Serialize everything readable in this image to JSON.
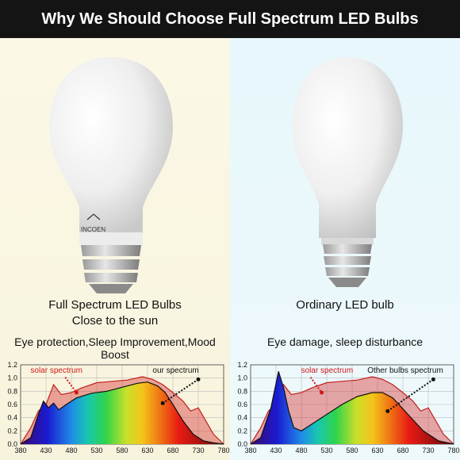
{
  "banner": {
    "title": "Why We Should Choose Full Spectrum LED Bulbs"
  },
  "left": {
    "logo_text": "INCOEN",
    "caption_line1": "Full Spectrum LED Bulbs",
    "caption_line2": "Close to the sun",
    "benefit": "Eye protection,Sleep Improvement,Mood Boost"
  },
  "right": {
    "caption": "Ordinary LED bulb",
    "benefit": "Eye damage, sleep disturbance"
  },
  "chart_data": [
    {
      "type": "area",
      "x": [
        380,
        430,
        480,
        530,
        580,
        630,
        680,
        730,
        780
      ],
      "ylim": [
        0,
        1.2
      ],
      "yticks": [
        "1.2",
        "1.0",
        "0.8",
        "0.6",
        "0.4",
        "0.2",
        "0.0"
      ],
      "xticks": [
        "380",
        "430",
        "480",
        "530",
        "580",
        "630",
        "680",
        "730",
        "780"
      ],
      "annotations": [
        "solar spectrum",
        "our spectrum"
      ],
      "series": [
        {
          "name": "solar spectrum",
          "x": [
            380,
            400,
            415,
            430,
            445,
            460,
            480,
            500,
            530,
            560,
            590,
            620,
            640,
            660,
            680,
            700,
            715,
            730,
            745,
            760,
            780
          ],
          "y": [
            0.0,
            0.25,
            0.5,
            0.6,
            0.9,
            0.75,
            0.78,
            0.85,
            0.93,
            0.95,
            0.97,
            1.02,
            0.98,
            0.9,
            0.78,
            0.65,
            0.5,
            0.55,
            0.35,
            0.15,
            0.0
          ]
        },
        {
          "name": "our spectrum",
          "x": [
            380,
            400,
            415,
            425,
            435,
            445,
            455,
            470,
            490,
            520,
            550,
            580,
            610,
            630,
            650,
            665,
            680,
            700,
            720,
            740,
            760,
            780
          ],
          "y": [
            0.0,
            0.1,
            0.45,
            0.65,
            0.55,
            0.62,
            0.52,
            0.6,
            0.7,
            0.77,
            0.8,
            0.86,
            0.92,
            0.94,
            0.88,
            0.78,
            0.6,
            0.35,
            0.15,
            0.05,
            0.02,
            0.0
          ]
        }
      ]
    },
    {
      "type": "area",
      "x": [
        380,
        430,
        480,
        530,
        580,
        630,
        680,
        730,
        780
      ],
      "ylim": [
        0,
        1.2
      ],
      "yticks": [
        "1.2",
        "1.0",
        "0.8",
        "0.6",
        "0.4",
        "0.2",
        "0.0"
      ],
      "xticks": [
        "380",
        "430",
        "480",
        "530",
        "580",
        "630",
        "680",
        "730",
        "780"
      ],
      "annotations": [
        "solar spectrum",
        "Other bulbs spectrum"
      ],
      "series": [
        {
          "name": "solar spectrum",
          "x": [
            380,
            400,
            415,
            430,
            445,
            460,
            480,
            500,
            530,
            560,
            590,
            620,
            640,
            660,
            680,
            700,
            715,
            730,
            745,
            760,
            780
          ],
          "y": [
            0.0,
            0.25,
            0.5,
            0.6,
            0.9,
            0.75,
            0.78,
            0.85,
            0.93,
            0.95,
            0.97,
            1.02,
            0.98,
            0.9,
            0.78,
            0.65,
            0.5,
            0.55,
            0.35,
            0.15,
            0.0
          ]
        },
        {
          "name": "Other bulbs spectrum",
          "x": [
            380,
            400,
            420,
            435,
            445,
            455,
            465,
            480,
            500,
            530,
            560,
            590,
            620,
            640,
            660,
            690,
            720,
            750,
            780
          ],
          "y": [
            0.0,
            0.1,
            0.55,
            1.1,
            0.85,
            0.5,
            0.25,
            0.2,
            0.3,
            0.45,
            0.6,
            0.72,
            0.78,
            0.78,
            0.7,
            0.45,
            0.2,
            0.05,
            0.0
          ]
        }
      ]
    }
  ]
}
